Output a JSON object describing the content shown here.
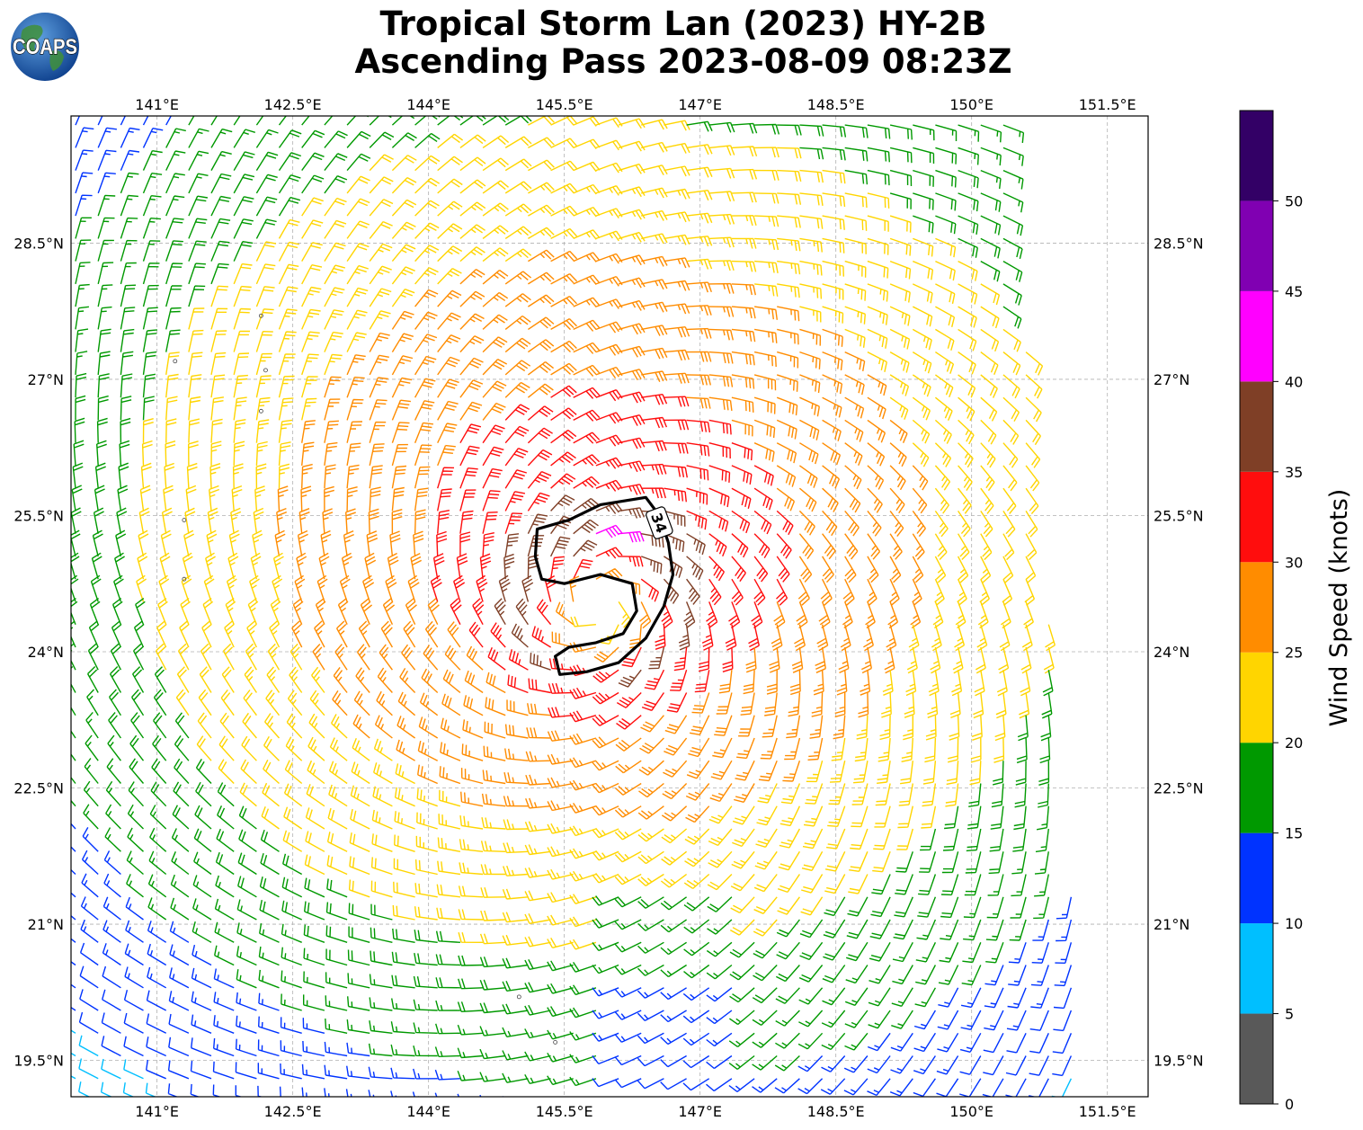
{
  "title": {
    "line1": "Tropical Storm Lan (2023) HY-2B",
    "line2": "Ascending Pass 2023-08-09 08:23Z"
  },
  "logo": {
    "text": "COAPS"
  },
  "map": {
    "lon_range": [
      140.05,
      151.95
    ],
    "lat_range": [
      19.1,
      29.9
    ],
    "lon_ticks": [
      {
        "value": 141.0,
        "label": "141°E"
      },
      {
        "value": 142.5,
        "label": "142.5°E"
      },
      {
        "value": 144.0,
        "label": "144°E"
      },
      {
        "value": 145.5,
        "label": "145.5°E"
      },
      {
        "value": 147.0,
        "label": "147°E"
      },
      {
        "value": 148.5,
        "label": "148.5°E"
      },
      {
        "value": 150.0,
        "label": "150°E"
      },
      {
        "value": 151.5,
        "label": "151.5°E"
      }
    ],
    "lat_ticks": [
      {
        "value": 28.5,
        "label": "28.5°N"
      },
      {
        "value": 27.0,
        "label": "27°N"
      },
      {
        "value": 25.5,
        "label": "25.5°N"
      },
      {
        "value": 24.0,
        "label": "24°N"
      },
      {
        "value": 22.5,
        "label": "22.5°N"
      },
      {
        "value": 21.0,
        "label": "21°N"
      },
      {
        "value": 19.5,
        "label": "19.5°N"
      }
    ],
    "grid": true,
    "storm_center": {
      "lon": 145.9,
      "lat": 24.5
    },
    "swath_east_edge": [
      [
        150.4,
        29.85
      ],
      [
        151.3,
        19.1
      ]
    ],
    "contour": {
      "label": "34",
      "level_kt": 34,
      "path": [
        [
          146.4,
          25.7
        ],
        [
          145.9,
          25.62
        ],
        [
          145.55,
          25.45
        ],
        [
          145.2,
          25.35
        ],
        [
          145.18,
          25.05
        ],
        [
          145.25,
          24.8
        ],
        [
          145.5,
          24.75
        ],
        [
          145.9,
          24.85
        ],
        [
          146.25,
          24.75
        ],
        [
          146.3,
          24.45
        ],
        [
          146.15,
          24.2
        ],
        [
          145.85,
          24.1
        ],
        [
          145.55,
          24.05
        ],
        [
          145.4,
          23.95
        ],
        [
          145.45,
          23.75
        ],
        [
          145.75,
          23.78
        ],
        [
          146.1,
          23.88
        ],
        [
          146.4,
          24.15
        ],
        [
          146.6,
          24.5
        ],
        [
          146.7,
          24.85
        ],
        [
          146.65,
          25.2
        ],
        [
          146.55,
          25.5
        ],
        [
          146.4,
          25.7
        ]
      ]
    },
    "islands": [
      [
        142.15,
        27.7
      ],
      [
        142.2,
        27.1
      ],
      [
        142.15,
        26.65
      ],
      [
        141.3,
        25.45
      ],
      [
        141.3,
        24.8
      ],
      [
        145.0,
        20.2
      ],
      [
        145.4,
        19.7
      ],
      [
        141.2,
        27.2
      ]
    ]
  },
  "colorbar": {
    "label": "Wind Speed (knots)",
    "min": 0,
    "max": 55,
    "bins": [
      {
        "from": 0,
        "to": 5,
        "color": "#595959"
      },
      {
        "from": 5,
        "to": 10,
        "color": "#00bfff"
      },
      {
        "from": 10,
        "to": 15,
        "color": "#0033ff"
      },
      {
        "from": 15,
        "to": 20,
        "color": "#009900"
      },
      {
        "from": 20,
        "to": 25,
        "color": "#ffd500"
      },
      {
        "from": 25,
        "to": 30,
        "color": "#ff8c00"
      },
      {
        "from": 30,
        "to": 35,
        "color": "#ff0d0d"
      },
      {
        "from": 35,
        "to": 40,
        "color": "#7f3f26"
      },
      {
        "from": 40,
        "to": 45,
        "color": "#ff00ff"
      },
      {
        "from": 45,
        "to": 50,
        "color": "#8000b2"
      },
      {
        "from": 50,
        "to": 55,
        "color": "#330066"
      }
    ],
    "ticks": [
      "0",
      "5",
      "10",
      "15",
      "20",
      "25",
      "30",
      "35",
      "40",
      "45",
      "50"
    ]
  }
}
